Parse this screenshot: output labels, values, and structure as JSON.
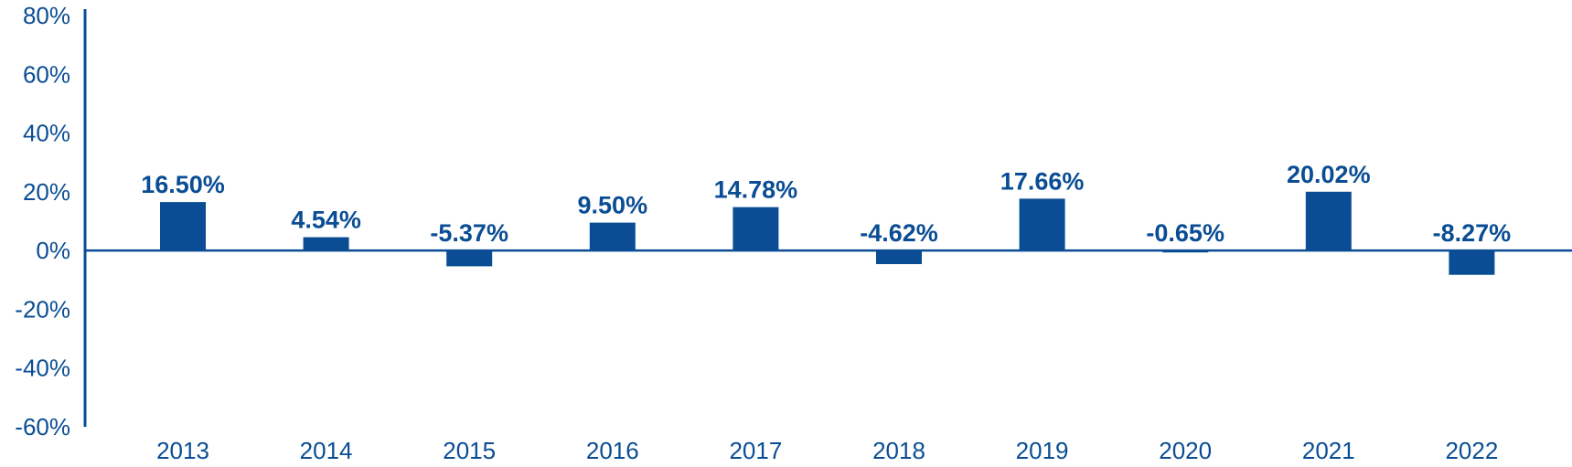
{
  "chart_data": {
    "type": "bar",
    "title": "",
    "xlabel": "",
    "ylabel": "",
    "categories": [
      "2013",
      "2014",
      "2015",
      "2016",
      "2017",
      "2018",
      "2019",
      "2020",
      "2021",
      "2022"
    ],
    "values": [
      16.5,
      4.54,
      -5.37,
      9.5,
      14.78,
      -4.62,
      17.66,
      -0.65,
      20.02,
      -8.27
    ],
    "data_labels": [
      "16.50%",
      "4.54%",
      "-5.37%",
      "9.50%",
      "14.78%",
      "-4.62%",
      "17.66%",
      "-0.65%",
      "20.02%",
      "-8.27%"
    ],
    "ylim": [
      -60,
      80
    ],
    "yticks": [
      80,
      60,
      40,
      20,
      0,
      -20,
      -40,
      -60
    ],
    "ytick_labels": [
      "80%",
      "60%",
      "40%",
      "20%",
      "0%",
      "-20%",
      "-40%",
      "-60%"
    ],
    "grid": false,
    "legend": "none",
    "colors": {
      "bar": "#0a4d94",
      "axis": "#0a4d94",
      "text": "#0a4d94"
    }
  }
}
